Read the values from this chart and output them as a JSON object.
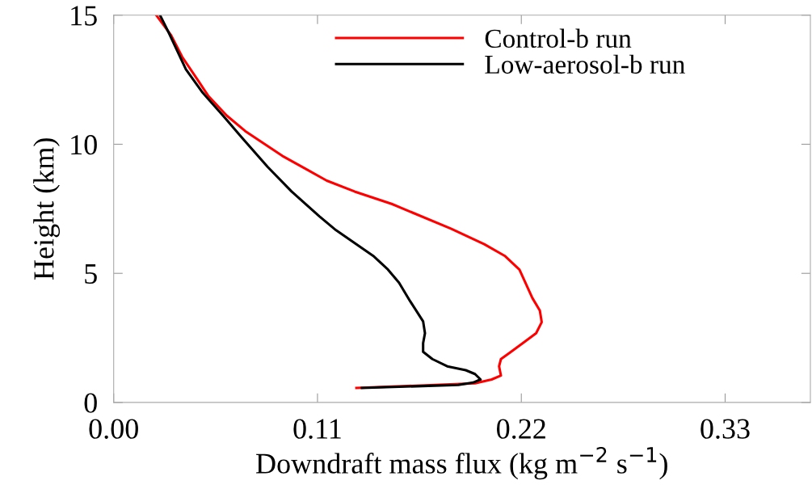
{
  "chart_data": {
    "type": "line",
    "xlabel": "Downdraft mass flux (kg m$^{−2}$ s$^{−1}$)",
    "ylabel": "Height (km)",
    "xlim": [
      0,
      0.376
    ],
    "xticks": [
      {
        "value": 0,
        "label": "0.00"
      },
      0.11,
      0.22,
      0.33
    ],
    "ylim": [
      0,
      15
    ],
    "yticks": [
      0,
      5,
      10,
      15
    ],
    "grid": false,
    "legend": "top",
    "line_style": "solid",
    "marker": "none",
    "series": [
      {
        "name": "Control-b run",
        "color": "#ff0000",
        "x": [
          0.131,
          0.195,
          0.204,
          0.209,
          0.208,
          0.209,
          0.214,
          0.222,
          0.228,
          0.231,
          0.23,
          0.226,
          0.219,
          0.211,
          0.2,
          0.182,
          0.15,
          0.13,
          0.115,
          0.103,
          0.091,
          0.081,
          0.071,
          0.061,
          0.051,
          0.046,
          0.037,
          0.031,
          0.023
        ],
        "values": [
          0.56,
          0.74,
          0.89,
          1.04,
          1.4,
          1.68,
          1.94,
          2.36,
          2.68,
          3.11,
          3.56,
          4.04,
          5.14,
          5.68,
          6.13,
          6.73,
          7.69,
          8.17,
          8.59,
          9.07,
          9.55,
          10.03,
          10.51,
          11.11,
          11.88,
          12.42,
          13.38,
          14.22,
          15.0
        ]
      },
      {
        "name": "Low-aerosol-b run",
        "color": "#000000",
        "x": [
          0.134,
          0.186,
          0.194,
          0.198,
          0.195,
          0.19,
          0.18,
          0.172,
          0.167,
          0.167,
          0.168,
          0.167,
          0.16,
          0.154,
          0.148,
          0.14,
          0.12,
          0.111,
          0.096,
          0.083,
          0.069,
          0.059,
          0.048,
          0.039,
          0.03,
          0.025
        ],
        "values": [
          0.56,
          0.68,
          0.77,
          0.89,
          1.1,
          1.25,
          1.4,
          1.68,
          1.96,
          2.3,
          2.68,
          3.14,
          3.92,
          4.64,
          5.15,
          5.68,
          6.67,
          7.21,
          8.17,
          9.13,
          10.27,
          11.11,
          12.0,
          12.9,
          14.28,
          15.0
        ]
      }
    ]
  }
}
